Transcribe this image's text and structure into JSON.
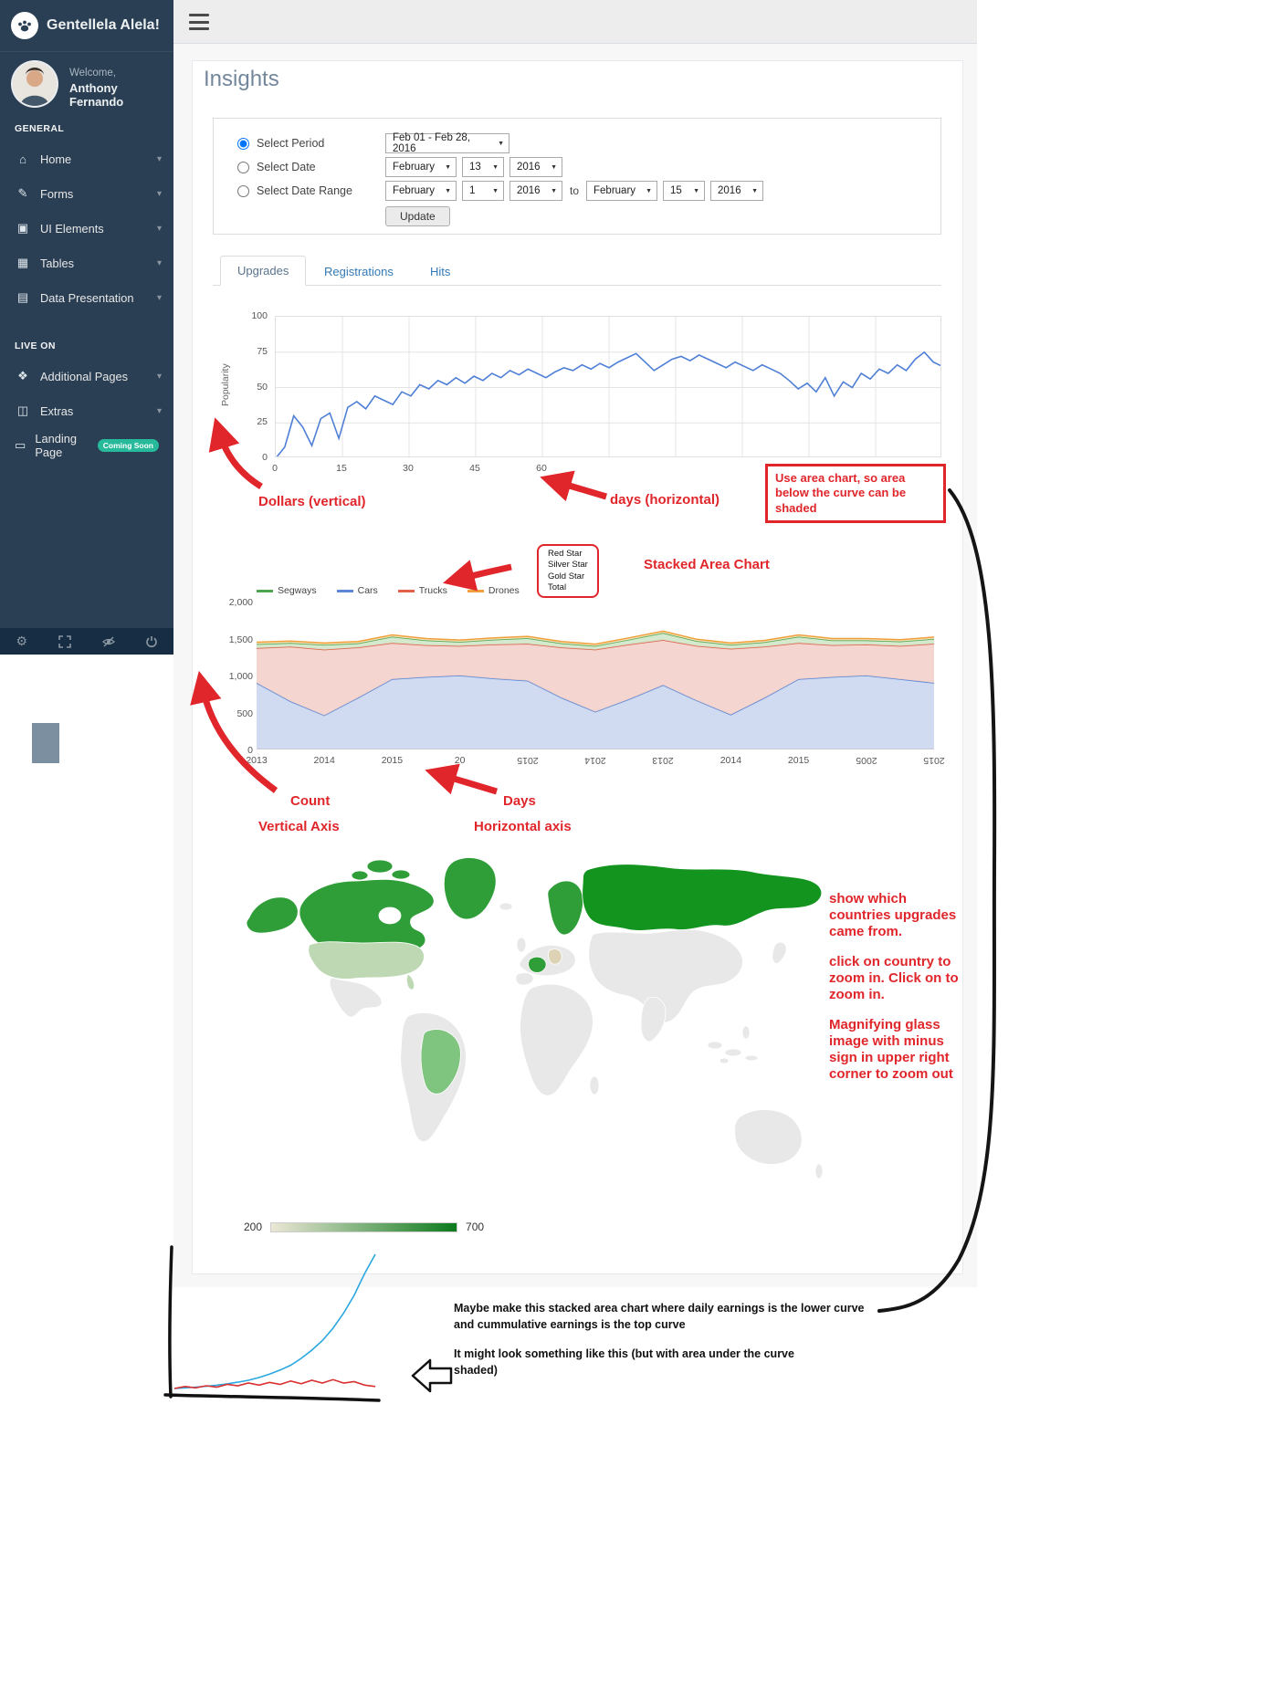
{
  "app": {
    "brand": "Gentellela Alela!"
  },
  "sidebar": {
    "welcome_label": "Welcome,",
    "user_name": "Anthony Fernando",
    "general_label": "GENERAL",
    "liveon_label": "LIVE ON",
    "general_items": [
      {
        "label": "Home",
        "icon": "home",
        "chevron": true
      },
      {
        "label": "Forms",
        "icon": "edit",
        "chevron": true
      },
      {
        "label": "UI Elements",
        "icon": "desktop",
        "chevron": true
      },
      {
        "label": "Tables",
        "icon": "table",
        "chevron": true
      },
      {
        "label": "Data Presentation",
        "icon": "bar-chart",
        "chevron": true
      }
    ],
    "liveon_items": [
      {
        "label": "Additional Pages",
        "icon": "bug",
        "chevron": true
      },
      {
        "label": "Extras",
        "icon": "windows",
        "chevron": true
      },
      {
        "label": "Landing Page",
        "icon": "laptop",
        "badge": "Coming Soon"
      }
    ]
  },
  "page": {
    "title": "Insights"
  },
  "filters": {
    "period": {
      "label": "Select Period",
      "value": "Feb 01 - Feb 28, 2016"
    },
    "date": {
      "label": "Select Date",
      "month": "February",
      "day": "13",
      "year": "2016"
    },
    "range": {
      "label": "Select Date Range",
      "from_month": "February",
      "from_day": "1",
      "from_year": "2016",
      "to_label": "to",
      "to_month": "February",
      "to_day": "15",
      "to_year": "2016"
    },
    "update_label": "Update"
  },
  "tabs": [
    {
      "label": "Upgrades",
      "active": true
    },
    {
      "label": "Registrations",
      "active": false
    },
    {
      "label": "Hits",
      "active": false
    }
  ],
  "annotations": {
    "dollars_vertical": "Dollars (vertical)",
    "days_horizontal": "days (horizontal)",
    "use_area_box": "Use area chart, so area below the curve can be shaded",
    "stacked_area_chart": "Stacked Area Chart",
    "legend_box": [
      "Red Star",
      "Silver Star",
      "Gold Star",
      "Total"
    ],
    "count": "Count",
    "vertical_axis": "Vertical Axis",
    "days": "Days",
    "horizontal_axis": "Horizontal axis",
    "map_note_1": "show which countries upgrades came from.",
    "map_note_2": "click on country to zoom in.  Click on to zoom in.",
    "map_note_3": "Magnifying glass image with minus sign in upper right corner to zoom out",
    "earnings_note": "Maybe make this  stacked area chart where daily earnings is the lower curve and cummulative earnings is the top curve",
    "sketch_note": "It might look something like this (but with area under the curve shaded)"
  },
  "map": {
    "legend_min": "200",
    "legend_max": "700",
    "legend_gradient": [
      "#ECE7D6",
      "#0C7A1C"
    ],
    "default_fill": "#E8E8E8",
    "countries": {
      "greenland": "#2F9E38",
      "canada": "#2F9E38",
      "canada-islands": "#2F9E38",
      "alaska": "#2F9E38",
      "usa": "#BDD8B3",
      "brazil": "#7FC47F",
      "scandinavia": "#2F9E38",
      "france": "#2F9E38",
      "germany": "#DED2B5",
      "russia": "#12941F"
    }
  },
  "chart_data": [
    {
      "type": "line",
      "title": "Upgrades popularity over days",
      "xlabel": "days",
      "ylabel": "Popularity",
      "ylim": [
        0,
        100
      ],
      "xlim": [
        0,
        150
      ],
      "xticks": [
        "0",
        "15",
        "30",
        "45",
        "60"
      ],
      "yticks": [
        "100",
        "75",
        "50",
        "25",
        "0"
      ],
      "grid": true,
      "line_color": "#4E7FD6",
      "values": [
        0,
        8,
        30,
        22,
        9,
        28,
        32,
        14,
        36,
        40,
        35,
        44,
        41,
        38,
        47,
        44,
        52,
        49,
        55,
        52,
        57,
        53,
        58,
        55,
        60,
        57,
        62,
        59,
        63,
        60,
        57,
        61,
        64,
        62,
        66,
        63,
        67,
        64,
        68,
        71,
        74,
        68,
        62,
        66,
        70,
        72,
        69,
        73,
        70,
        67,
        64,
        68,
        65,
        62,
        66,
        63,
        60,
        55,
        49,
        53,
        47,
        57,
        44,
        54,
        50,
        60,
        56,
        63,
        60,
        66,
        62,
        70,
        75,
        68,
        65
      ]
    },
    {
      "type": "area",
      "title": "Stacked Area Chart",
      "ylim": [
        0,
        2000
      ],
      "yticks": [
        "2,000",
        "1,500",
        "1,000",
        "500",
        "0"
      ],
      "xtick_labels": [
        {
          "label": "2013",
          "flipped": false
        },
        {
          "label": "2014",
          "flipped": false
        },
        {
          "label": "2015",
          "flipped": false
        },
        {
          "label": "20",
          "flipped": false
        },
        {
          "label": "2015",
          "flipped": true
        },
        {
          "label": "2014",
          "flipped": true
        },
        {
          "label": "2013",
          "flipped": true
        },
        {
          "label": "2014",
          "flipped": false
        },
        {
          "label": "2015",
          "flipped": false
        },
        {
          "label": "2005",
          "flipped": true
        },
        {
          "label": "2015",
          "flipped": true
        }
      ],
      "legend": [
        {
          "name": "Segways",
          "color": "#4DA64D"
        },
        {
          "name": "Cars",
          "color": "#5B87D5"
        },
        {
          "name": "Trucks",
          "color": "#E0604A"
        },
        {
          "name": "Drones",
          "color": "#F0A03A"
        }
      ],
      "series": [
        {
          "name": "Cars",
          "stroke": "#5B87D5",
          "fill": "#C9D6F0",
          "values": [
            900,
            650,
            460,
            700,
            950,
            980,
            1000,
            960,
            930,
            700,
            510,
            680,
            870,
            660,
            470,
            700,
            950,
            980,
            1000,
            950,
            900
          ]
        },
        {
          "name": "Trucks",
          "stroke": "#E0604A",
          "fill": "#F2CFC8",
          "values": [
            470,
            740,
            890,
            680,
            490,
            430,
            400,
            460,
            500,
            680,
            840,
            740,
            610,
            740,
            890,
            690,
            490,
            430,
            420,
            450,
            530
          ]
        },
        {
          "name": "Segways",
          "stroke": "#4DA64D",
          "fill": "#CFE6C8",
          "values": [
            55,
            50,
            65,
            55,
            85,
            65,
            55,
            65,
            75,
            55,
            50,
            65,
            95,
            65,
            55,
            60,
            85,
            65,
            55,
            60,
            65
          ]
        },
        {
          "name": "Drones",
          "stroke": "#F0A03A",
          "fill": "#FBE2BD",
          "values": [
            25,
            25,
            25,
            25,
            25,
            25,
            25,
            25,
            25,
            25,
            25,
            25,
            25,
            25,
            25,
            25,
            25,
            25,
            25,
            25,
            25
          ]
        }
      ]
    },
    {
      "type": "line",
      "title": "earnings sketch",
      "series": [
        {
          "name": "cummulative earnings",
          "color": "#2AA7DF",
          "values": [
            2,
            2.5,
            3,
            3.6,
            4.4,
            5.4,
            6.6,
            8,
            10,
            12.5,
            15.5,
            19,
            24,
            30,
            37,
            46,
            57,
            70,
            86,
            100
          ]
        },
        {
          "name": "daily earnings",
          "color": "#D93030",
          "values": [
            2,
            3.5,
            2.5,
            4,
            3,
            5,
            4,
            6,
            4.5,
            6.5,
            5,
            7.5,
            5.5,
            8,
            6,
            8.5,
            6,
            7,
            4.5,
            3.5
          ]
        }
      ]
    }
  ]
}
